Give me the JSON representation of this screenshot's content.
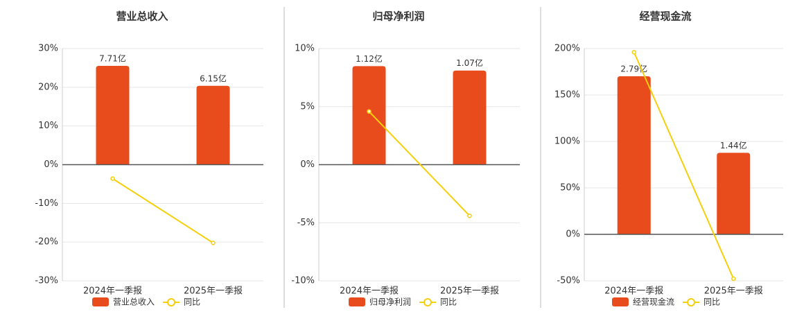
{
  "chart_data": [
    {
      "type": "bar-line",
      "title": "营业总收入",
      "categories": [
        "2024年一季报",
        "2025年一季报"
      ],
      "series": [
        {
          "name": "营业总收入",
          "type": "bar",
          "color": "#e84c1c",
          "axis": "y2",
          "values": [
            7.71,
            6.15
          ],
          "value_labels": [
            "7.71亿",
            "6.15亿"
          ]
        },
        {
          "name": "同比",
          "type": "line",
          "color": "#f5cf0a",
          "values": [
            -3.6,
            -20.2
          ]
        }
      ],
      "ylim": [
        -30,
        30
      ],
      "yticks": [
        {
          "value": -30,
          "label": "-30%"
        },
        {
          "value": -20,
          "label": "-20%"
        },
        {
          "value": -10,
          "label": "-10%"
        },
        {
          "value": 0,
          "label": "0%"
        },
        {
          "value": 10,
          "label": "10%"
        },
        {
          "value": 20,
          "label": "20%"
        },
        {
          "value": 30,
          "label": "30%"
        }
      ],
      "y2lim": [
        -9.06,
        9.06
      ],
      "grid": true
    },
    {
      "type": "bar-line",
      "title": "归母净利润",
      "categories": [
        "2024年一季报",
        "2025年一季报"
      ],
      "series": [
        {
          "name": "归母净利润",
          "type": "bar",
          "color": "#e84c1c",
          "axis": "y2",
          "values": [
            1.12,
            1.07
          ],
          "value_labels": [
            "1.12亿",
            "1.07亿"
          ]
        },
        {
          "name": "同比",
          "type": "line",
          "color": "#f5cf0a",
          "values": [
            4.58,
            -4.4
          ]
        }
      ],
      "ylim": [
        -10,
        10
      ],
      "yticks": [
        {
          "value": -10,
          "label": "-10%"
        },
        {
          "value": -5,
          "label": "-5%"
        },
        {
          "value": 0,
          "label": "0%"
        },
        {
          "value": 5,
          "label": "5%"
        },
        {
          "value": 10,
          "label": "10%"
        }
      ],
      "y2lim": [
        -1.32,
        1.32
      ],
      "grid": true
    },
    {
      "type": "bar-line",
      "title": "经营现金流",
      "categories": [
        "2024年一季报",
        "2025年一季报"
      ],
      "series": [
        {
          "name": "经营现金流",
          "type": "bar",
          "color": "#e84c1c",
          "axis": "y2",
          "values": [
            2.79,
            1.44
          ],
          "value_labels": [
            "2.79亿",
            "1.44亿"
          ]
        },
        {
          "name": "同比",
          "type": "line",
          "color": "#f5cf0a",
          "values": [
            196,
            -47.8
          ]
        }
      ],
      "ylim": [
        -50,
        200
      ],
      "yticks": [
        {
          "value": -50,
          "label": "-50%"
        },
        {
          "value": 0,
          "label": "0%"
        },
        {
          "value": 50,
          "label": "50%"
        },
        {
          "value": 100,
          "label": "100%"
        },
        {
          "value": 150,
          "label": "150%"
        },
        {
          "value": 200,
          "label": "200%"
        }
      ],
      "y2lim": [
        -0.82,
        3.28
      ],
      "grid": true
    }
  ]
}
